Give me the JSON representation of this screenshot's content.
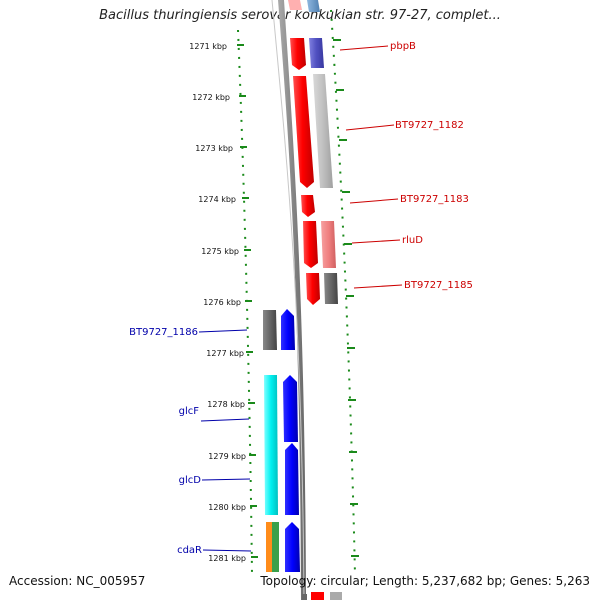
{
  "title": "Bacillus thuringiensis serovar konkukian str. 97-27, complet...",
  "accession": "Accession: NC_005957",
  "topology": "Topology: circular; Length: 5,237,682 bp; Genes: 5,263",
  "ticks": [
    "1271 kbp",
    "1272 kbp",
    "1273 kbp",
    "1274 kbp",
    "1275 kbp",
    "1276 kbp",
    "1277 kbp",
    "1278 kbp",
    "1279 kbp",
    "1280 kbp",
    "1281 kbp"
  ],
  "gene_labels_right": [
    "pbpB",
    "BT9727_1182",
    "BT9727_1183",
    "rluD",
    "BT9727_1185"
  ],
  "gene_labels_left": [
    "BT9727_1186",
    "glcF",
    "glcD",
    "cdaR"
  ],
  "colors": {
    "forward_label": "#cc0000",
    "reverse_label": "#0000aa",
    "scale_dash": "#1a8a1a",
    "backbone": "#888888"
  }
}
